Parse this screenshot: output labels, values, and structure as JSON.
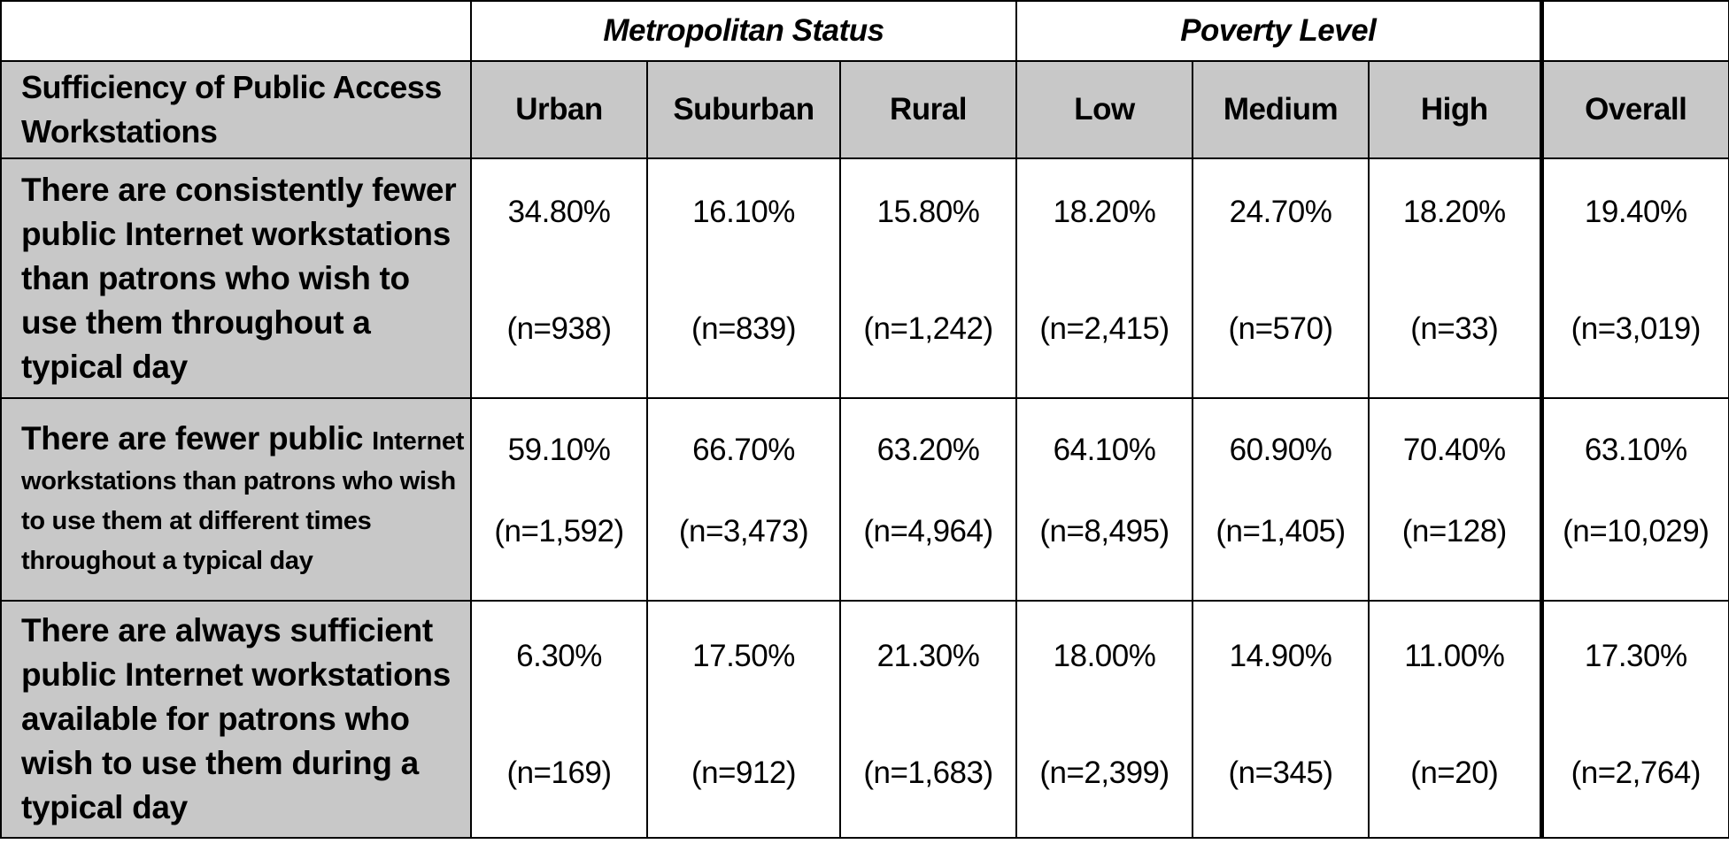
{
  "groups": {
    "metropolitan": "Metropolitan Status",
    "poverty": "Poverty Level"
  },
  "header": {
    "row_label": "Sufficiency of Public Access Workstations",
    "columns": [
      "Urban",
      "Suburban",
      "Rural",
      "Low",
      "Medium",
      "High",
      "Overall"
    ]
  },
  "rows": [
    {
      "label": "There are consistently fewer public Internet workstations than patrons who wish to use them throughout a typical day",
      "values": [
        {
          "pct": "34.80%",
          "n": "(n=938)"
        },
        {
          "pct": "16.10%",
          "n": "(n=839)"
        },
        {
          "pct": "15.80%",
          "n": "(n=1,242)"
        },
        {
          "pct": "18.20%",
          "n": "(n=2,415)"
        },
        {
          "pct": "24.70%",
          "n": "(n=570)"
        },
        {
          "pct": "18.20%",
          "n": "(n=33)"
        },
        {
          "pct": "19.40%",
          "n": "(n=3,019)"
        }
      ]
    },
    {
      "label_big": "There are fewer public",
      "label_small": "Internet workstations than patrons who wish to use them at different times throughout a typical day",
      "values": [
        {
          "pct": "59.10%",
          "n": "(n=1,592)"
        },
        {
          "pct": "66.70%",
          "n": "(n=3,473)"
        },
        {
          "pct": "63.20%",
          "n": "(n=4,964)"
        },
        {
          "pct": "64.10%",
          "n": "(n=8,495)"
        },
        {
          "pct": "60.90%",
          "n": "(n=1,405)"
        },
        {
          "pct": "70.40%",
          "n": "(n=128)"
        },
        {
          "pct": "63.10%",
          "n": "(n=10,029)"
        }
      ]
    },
    {
      "label": "There are always sufficient public Internet workstations available for patrons who wish to use them during a typical day",
      "values": [
        {
          "pct": "6.30%",
          "n": "(n=169)"
        },
        {
          "pct": "17.50%",
          "n": "(n=912)"
        },
        {
          "pct": "21.30%",
          "n": "(n=1,683)"
        },
        {
          "pct": "18.00%",
          "n": "(n=2,399)"
        },
        {
          "pct": "14.90%",
          "n": "(n=345)"
        },
        {
          "pct": "11.00%",
          "n": "(n=20)"
        },
        {
          "pct": "17.30%",
          "n": "(n=2,764)"
        }
      ]
    }
  ],
  "colors": {
    "header_fill": "#c8c8c8",
    "border": "#000000"
  }
}
